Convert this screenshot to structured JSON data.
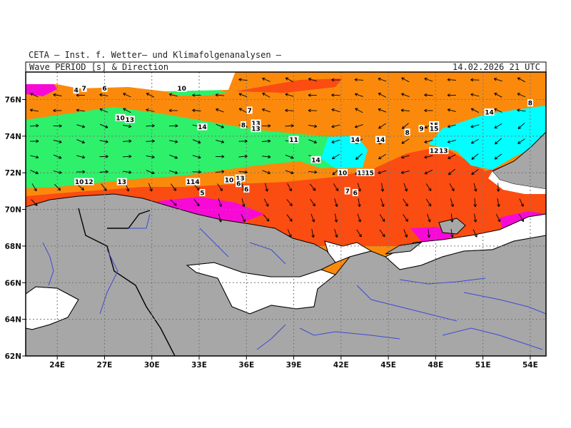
{
  "header": {
    "credit": "CETA — Inst. f. Wetter— und Klimafolgenanalysen —",
    "title": "Wave PERIOD [s] & Direction",
    "timestamp": "14.02.2026 21 UTC"
  },
  "map": {
    "lon_range": [
      22,
      55
    ],
    "lat_range": [
      62,
      77.5
    ],
    "lon_ticks": [
      "24E",
      "27E",
      "30E",
      "33E",
      "36E",
      "39E",
      "42E",
      "45E",
      "48E",
      "51E",
      "54E"
    ],
    "lat_ticks": [
      "62N",
      "64N",
      "66N",
      "68N",
      "70N",
      "72N",
      "74N",
      "76N"
    ],
    "colors": {
      "land": "#a7a7a7",
      "sea_orange": "#fb8a0c",
      "sea_redorange": "#fb4c12",
      "sea_green": "#2ef06a",
      "sea_cyan": "#00ffff",
      "sea_magenta": "#f80ad6",
      "coast": "#000000",
      "rivers": "#3b4bd6"
    },
    "period_labels": [
      {
        "text": "4",
        "lon": 25.2,
        "lat": 76.4
      },
      {
        "text": "7",
        "lon": 25.7,
        "lat": 76.5
      },
      {
        "text": "6",
        "lon": 27.0,
        "lat": 76.5
      },
      {
        "text": "10",
        "lon": 31.9,
        "lat": 76.5
      },
      {
        "text": "7",
        "lon": 36.2,
        "lat": 75.3
      },
      {
        "text": "10",
        "lon": 28.0,
        "lat": 74.9
      },
      {
        "text": "13",
        "lon": 28.6,
        "lat": 74.8
      },
      {
        "text": "14",
        "lon": 33.2,
        "lat": 74.4
      },
      {
        "text": "8",
        "lon": 35.8,
        "lat": 74.5
      },
      {
        "text": "13",
        "lon": 36.6,
        "lat": 74.6
      },
      {
        "text": "13",
        "lon": 36.6,
        "lat": 74.3
      },
      {
        "text": "11",
        "lon": 39.0,
        "lat": 73.7
      },
      {
        "text": "14",
        "lon": 42.9,
        "lat": 73.7
      },
      {
        "text": "14",
        "lon": 44.5,
        "lat": 73.7
      },
      {
        "text": "8",
        "lon": 46.2,
        "lat": 74.1
      },
      {
        "text": "9",
        "lon": 47.1,
        "lat": 74.3
      },
      {
        "text": "15",
        "lon": 47.9,
        "lat": 74.5
      },
      {
        "text": "15",
        "lon": 47.9,
        "lat": 74.3
      },
      {
        "text": "14",
        "lon": 51.4,
        "lat": 75.2
      },
      {
        "text": "8",
        "lon": 54.0,
        "lat": 75.7
      },
      {
        "text": "12",
        "lon": 47.9,
        "lat": 73.1
      },
      {
        "text": "13",
        "lon": 48.5,
        "lat": 73.1
      },
      {
        "text": "14",
        "lon": 40.4,
        "lat": 72.6
      },
      {
        "text": "10",
        "lon": 42.1,
        "lat": 71.9
      },
      {
        "text": "13",
        "lon": 43.3,
        "lat": 71.9
      },
      {
        "text": "15",
        "lon": 43.8,
        "lat": 71.9
      },
      {
        "text": "10",
        "lon": 25.4,
        "lat": 71.4
      },
      {
        "text": "12",
        "lon": 26.0,
        "lat": 71.4
      },
      {
        "text": "13",
        "lon": 28.1,
        "lat": 71.4
      },
      {
        "text": "114",
        "lon": 32.6,
        "lat": 71.4
      },
      {
        "text": "10",
        "lon": 34.9,
        "lat": 71.5
      },
      {
        "text": "13",
        "lon": 35.6,
        "lat": 71.6
      },
      {
        "text": "6",
        "lon": 35.5,
        "lat": 71.3
      },
      {
        "text": "6",
        "lon": 36.0,
        "lat": 71.0
      },
      {
        "text": "5",
        "lon": 33.2,
        "lat": 70.8
      },
      {
        "text": "7",
        "lon": 42.4,
        "lat": 70.9
      },
      {
        "text": "6",
        "lon": 42.9,
        "lat": 70.8
      }
    ]
  }
}
